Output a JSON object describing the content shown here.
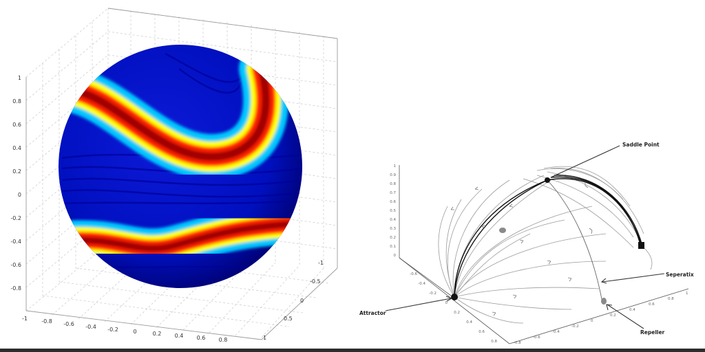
{
  "left_panel": {
    "z_ticks": [
      "1",
      "0.8",
      "0.6",
      "0.4",
      "0.2",
      "0",
      "-0.2",
      "-0.4",
      "-0.6",
      "-0.8"
    ],
    "x_ticks": [
      "-1",
      "-0.8",
      "-0.6",
      "-0.4",
      "-0.2",
      "0",
      "0.2",
      "0.4",
      "0.6",
      "0.8"
    ],
    "y_ticks": [
      "-1",
      "-0.5",
      "0",
      "0.5",
      "1"
    ],
    "colormap": [
      "#00008f",
      "#0000ff",
      "#00ffff",
      "#ffff00",
      "#ff0000",
      "#800000"
    ]
  },
  "right_panel": {
    "z_ticks": [
      "1",
      "0.9",
      "0.8",
      "0.7",
      "0.6",
      "0.5",
      "0.4",
      "0.3",
      "0.2",
      "0.1",
      "0"
    ],
    "x_ticks": [
      "-0.6",
      "-0.4",
      "-0.2",
      "0",
      "0.2",
      "0.4",
      "0.6",
      "0.8"
    ],
    "y_ticks": [
      "-0.8",
      "-0.6",
      "-0.4",
      "-0.2",
      "0",
      "0.2",
      "0.4",
      "0.6",
      "0.8",
      "1"
    ],
    "annotations": {
      "saddle": "Saddle Point",
      "separatrix": "Seperatix",
      "attractor": "Attractor",
      "repeller": "Repeller"
    }
  }
}
